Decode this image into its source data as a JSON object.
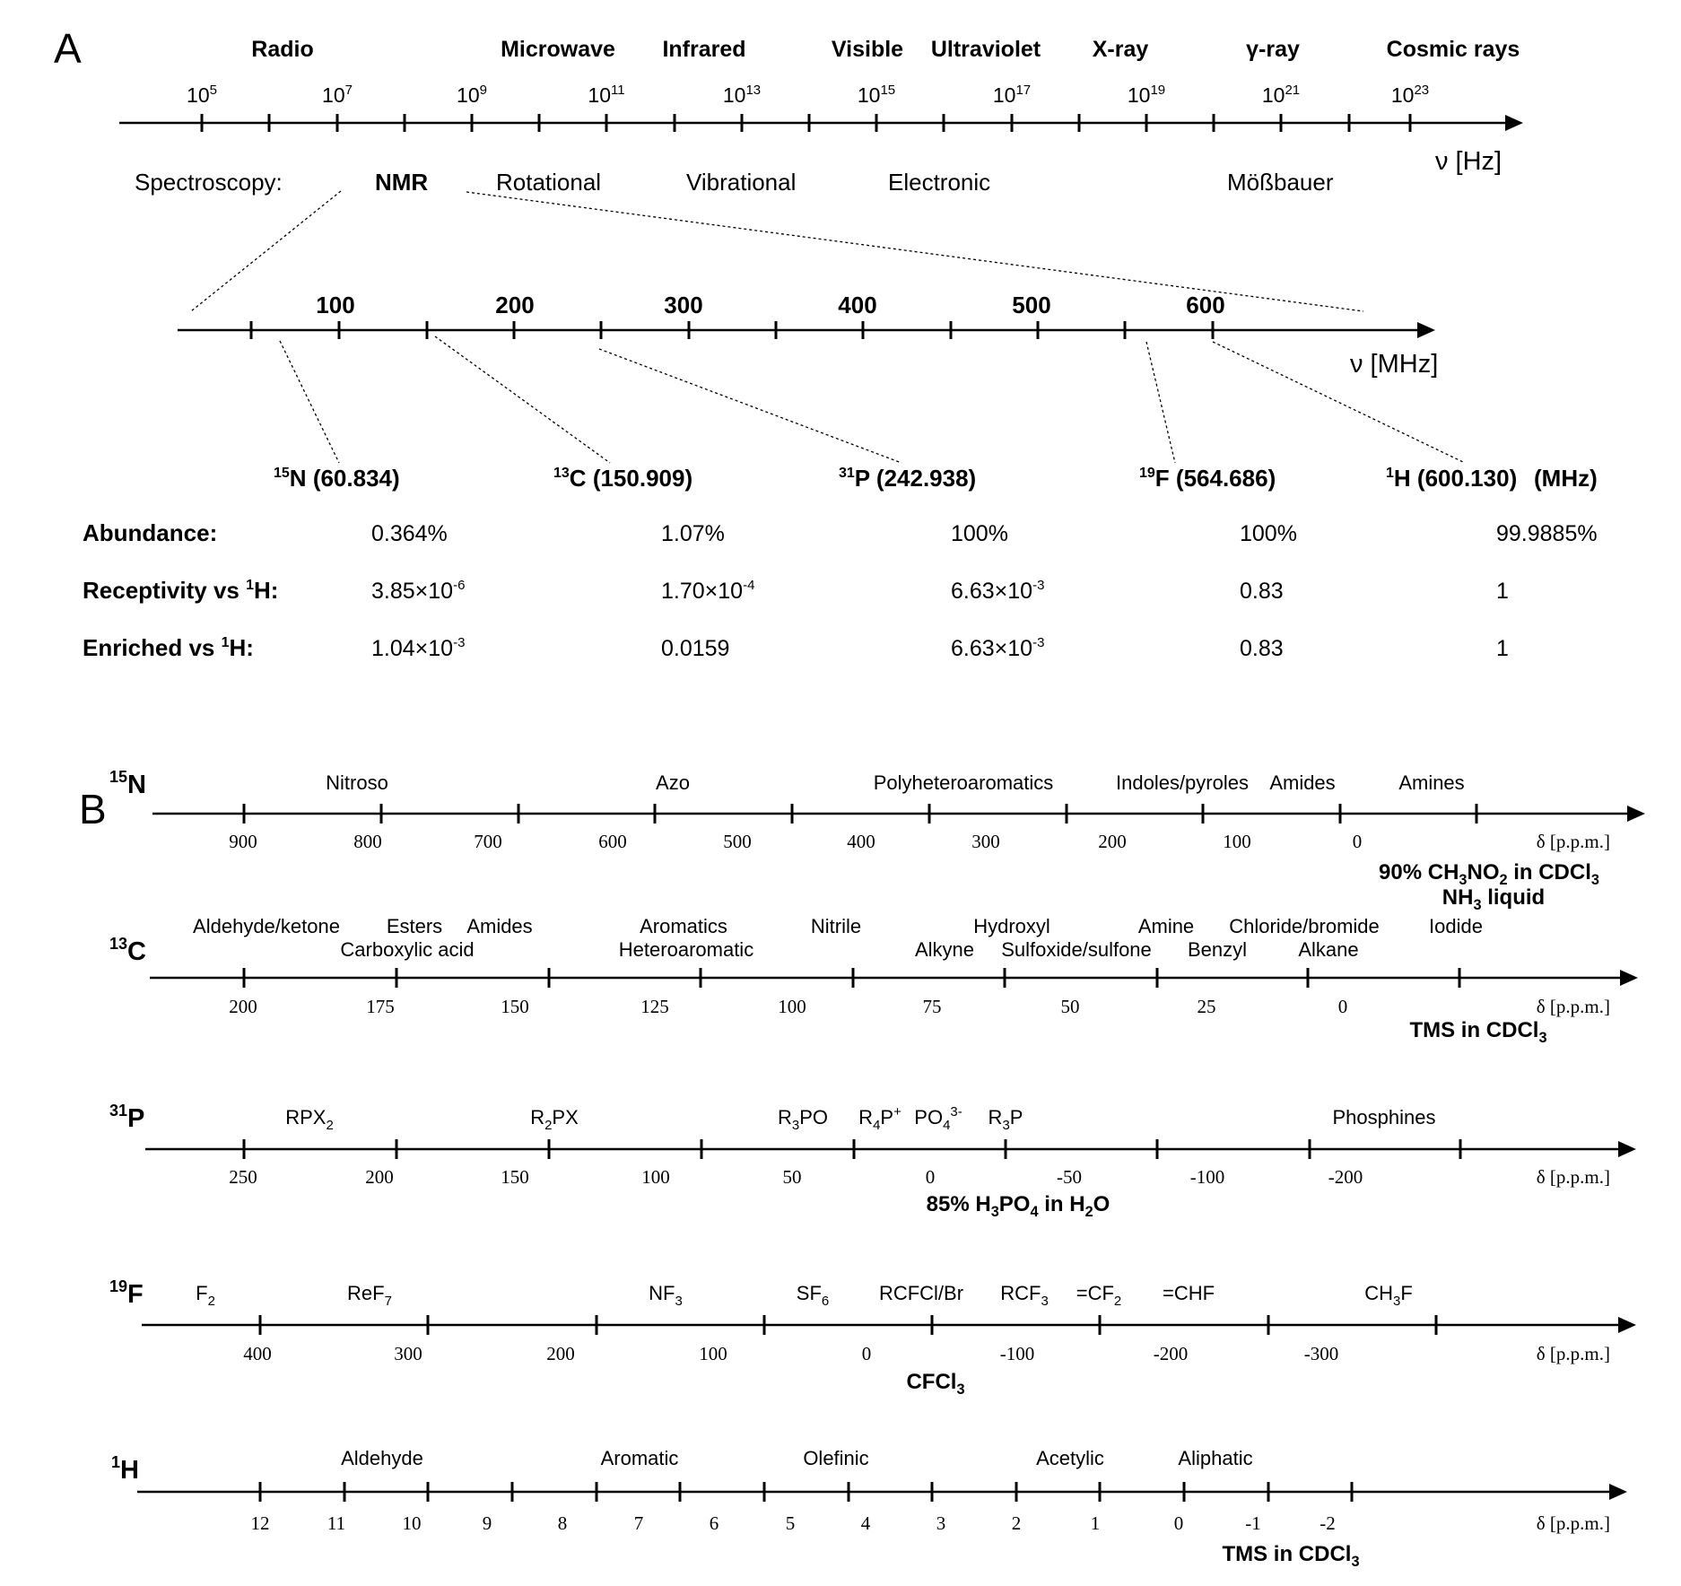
{
  "panel_a": {
    "label": "A",
    "regions": [
      "Radio",
      "Microwave",
      "Infrared",
      "Visible",
      "Ultraviolet",
      "X-ray",
      "γ-ray",
      "Cosmic rays"
    ],
    "hz_ticks": [
      {
        "base": "10",
        "exp": "5"
      },
      {
        "base": "10",
        "exp": "7"
      },
      {
        "base": "10",
        "exp": "9"
      },
      {
        "base": "10",
        "exp": "11"
      },
      {
        "base": "10",
        "exp": "13"
      },
      {
        "base": "10",
        "exp": "15"
      },
      {
        "base": "10",
        "exp": "17"
      },
      {
        "base": "10",
        "exp": "19"
      },
      {
        "base": "10",
        "exp": "21"
      },
      {
        "base": "10",
        "exp": "23"
      }
    ],
    "hz_unit": "ν [Hz]",
    "spectroscopy_label": "Spectroscopy:",
    "spectroscopies": [
      "NMR",
      "Rotational",
      "Vibrational",
      "Electronic",
      "Mößbauer"
    ],
    "mhz_ticks": [
      "100",
      "200",
      "300",
      "400",
      "500",
      "600"
    ],
    "mhz_unit": "ν [MHz]",
    "nuclei": [
      {
        "mass": "15",
        "symbol": "N",
        "freq": "(60.834)",
        "freq_mhz": 60.834
      },
      {
        "mass": "13",
        "symbol": "C",
        "freq": "(150.909)",
        "freq_mhz": 150.909
      },
      {
        "mass": "31",
        "symbol": "P",
        "freq": "(242.938)",
        "freq_mhz": 242.938
      },
      {
        "mass": "19",
        "symbol": "F",
        "freq": "(564.686)",
        "freq_mhz": 564.686
      },
      {
        "mass": "1",
        "symbol": "H",
        "freq": "(600.130)",
        "freq_mhz": 600.13
      }
    ],
    "mhz_suffix": "(MHz)",
    "table": {
      "rows": [
        {
          "label": "Abundance:",
          "label_sup": "",
          "label_end": "",
          "values": [
            {
              "m": "0.364%",
              "e": ""
            },
            {
              "m": "1.07%",
              "e": ""
            },
            {
              "m": "100%",
              "e": ""
            },
            {
              "m": "100%",
              "e": ""
            },
            {
              "m": "99.9885%",
              "e": ""
            }
          ]
        },
        {
          "label": "Receptivity vs ",
          "label_sup": "1",
          "label_end": "H:",
          "values": [
            {
              "m": "3.85×10",
              "e": "-6"
            },
            {
              "m": "1.70×10",
              "e": "-4"
            },
            {
              "m": "6.63×10",
              "e": "-3"
            },
            {
              "m": "0.83",
              "e": ""
            },
            {
              "m": "1",
              "e": ""
            }
          ]
        },
        {
          "label": "Enriched vs ",
          "label_sup": "1",
          "label_end": "H:",
          "values": [
            {
              "m": "1.04×10",
              "e": "-3"
            },
            {
              "m": "0.0159",
              "e": ""
            },
            {
              "m": "6.63×10",
              "e": "-3"
            },
            {
              "m": "0.83",
              "e": ""
            },
            {
              "m": "1",
              "e": ""
            }
          ]
        }
      ]
    }
  },
  "panel_b": {
    "label": "B",
    "axis_unit": "δ [p.p.m.]",
    "n15": {
      "mass": "15",
      "symbol": "N",
      "groups": [
        {
          "p": [
            "Nitroso"
          ]
        },
        {
          "p": [
            "Azo"
          ]
        },
        {
          "p": [
            "Polyheteroaromatics"
          ]
        },
        {
          "p": [
            "Indoles/pyroles"
          ]
        },
        {
          "p": [
            "Amides"
          ]
        },
        {
          "p": [
            "Amines"
          ]
        }
      ],
      "ticks": [
        "900",
        "800",
        "700",
        "600",
        "500",
        "400",
        "300",
        "200",
        "100",
        "0"
      ],
      "ref1": {
        "p": [
          "90% CH",
          {
            "sub": "3"
          },
          "NO",
          {
            "sub": "2"
          },
          " in CDCl",
          {
            "sub": "3"
          }
        ]
      },
      "ref2": {
        "p": [
          "NH",
          {
            "sub": "3"
          },
          " liquid"
        ]
      }
    },
    "c13": {
      "mass": "13",
      "symbol": "C",
      "groups_top": [
        {
          "p": [
            "Aldehyde/ketone"
          ]
        },
        {
          "p": [
            "Esters"
          ]
        },
        {
          "p": [
            "Amides"
          ]
        },
        {
          "p": [
            "Aromatics"
          ]
        },
        {
          "p": [
            "Nitrile"
          ]
        },
        {
          "p": [
            "Hydroxyl"
          ]
        },
        {
          "p": [
            "Amine"
          ]
        },
        {
          "p": [
            "Chloride/bromide"
          ]
        },
        {
          "p": [
            "Iodide"
          ]
        }
      ],
      "groups_bottom": [
        {
          "p": [
            "Carboxylic acid"
          ]
        },
        {
          "p": [
            "Heteroaromatic"
          ]
        },
        {
          "p": [
            "Alkyne"
          ]
        },
        {
          "p": [
            "Sulfoxide/sulfone"
          ]
        },
        {
          "p": [
            "Benzyl"
          ]
        },
        {
          "p": [
            "Alkane"
          ]
        }
      ],
      "ticks": [
        "200",
        "175",
        "150",
        "125",
        "100",
        "75",
        "50",
        "25",
        "0"
      ],
      "ref": {
        "p": [
          "TMS in CDCl",
          {
            "sub": "3"
          }
        ]
      }
    },
    "p31": {
      "mass": "31",
      "symbol": "P",
      "groups": [
        {
          "p": [
            "RPX",
            {
              "sub": "2"
            }
          ]
        },
        {
          "p": [
            "R",
            {
              "sub": "2"
            },
            "PX"
          ]
        },
        {
          "p": [
            "R",
            {
              "sub": "3"
            },
            "PO"
          ]
        },
        {
          "p": [
            "R",
            {
              "sub": "4"
            },
            "P",
            {
              "sup": "+"
            }
          ]
        },
        {
          "p": [
            "PO",
            {
              "sub": "4"
            },
            {
              "sup": "3-"
            }
          ]
        },
        {
          "p": [
            "R",
            {
              "sub": "3"
            },
            "P"
          ]
        },
        {
          "p": [
            "Phosphines"
          ]
        }
      ],
      "ticks": [
        "250",
        "200",
        "150",
        "100",
        "50",
        "0",
        "-50",
        "-100",
        "-200"
      ],
      "ref": {
        "p": [
          "85% H",
          {
            "sub": "3"
          },
          "PO",
          {
            "sub": "4"
          },
          " in H",
          {
            "sub": "2"
          },
          "O"
        ]
      }
    },
    "f19": {
      "mass": "19",
      "symbol": "F",
      "groups": [
        {
          "p": [
            "F",
            {
              "sub": "2"
            }
          ]
        },
        {
          "p": [
            "ReF",
            {
              "sub": "7"
            }
          ]
        },
        {
          "p": [
            "NF",
            {
              "sub": "3"
            }
          ]
        },
        {
          "p": [
            "SF",
            {
              "sub": "6"
            }
          ]
        },
        {
          "p": [
            "RCFCl/Br"
          ]
        },
        {
          "p": [
            "RCF",
            {
              "sub": "3"
            }
          ]
        },
        {
          "p": [
            "=CF",
            {
              "sub": "2"
            }
          ]
        },
        {
          "p": [
            "=CHF"
          ]
        },
        {
          "p": [
            "CH",
            {
              "sub": "3"
            },
            "F"
          ]
        }
      ],
      "ticks": [
        "400",
        "300",
        "200",
        "100",
        "0",
        "-100",
        "-200",
        "-300"
      ],
      "ref": {
        "p": [
          "CFCl",
          {
            "sub": "3"
          }
        ]
      }
    },
    "h1": {
      "mass": "1",
      "symbol": "H",
      "groups": [
        {
          "p": [
            "Aldehyde"
          ]
        },
        {
          "p": [
            "Aromatic"
          ]
        },
        {
          "p": [
            "Olefinic"
          ]
        },
        {
          "p": [
            "Acetylic"
          ]
        },
        {
          "p": [
            "Aliphatic"
          ]
        }
      ],
      "ticks": [
        "12",
        "11",
        "10",
        "9",
        "8",
        "7",
        "6",
        "5",
        "4",
        "3",
        "2",
        "1",
        "0",
        "-1",
        "-2"
      ],
      "ref": {
        "p": [
          "TMS in CDCl",
          {
            "sub": "3"
          }
        ]
      }
    }
  }
}
